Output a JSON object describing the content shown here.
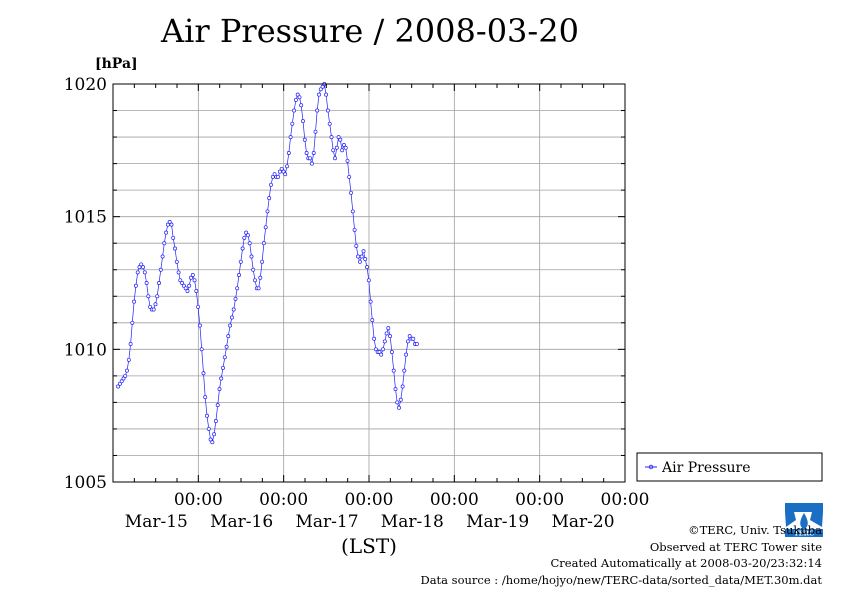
{
  "title": "Air Pressure / 2008-03-20",
  "unit_label": "[hPa]",
  "xlabel": "(LST)",
  "legend": {
    "label": "Air Pressure"
  },
  "logo_text": "TERC",
  "credits": {
    "line1": "©TERC, Univ. Tsukuba",
    "line2": "Observed at TERC Tower site",
    "line3": "Created Automatically at 2008-03-20/23:32:14",
    "line4": "Data source : /home/hojyo/new/TERC-data/sorted_data/MET.30m.dat"
  },
  "colors": {
    "series": "#2020ff",
    "grid": "#a0a0a0",
    "axis": "#000000"
  },
  "chart_data": {
    "type": "line",
    "title": "Air Pressure / 2008-03-20",
    "ylabel": "[hPa]",
    "xlabel": "(LST)",
    "ylim": [
      1005,
      1020
    ],
    "yticks": [
      1005,
      1010,
      1015,
      1020
    ],
    "xlim": [
      -1.0,
      5.0
    ],
    "x_unit": "days from Mar-15 00:00 LST",
    "xticks": [
      {
        "x": 0,
        "time": "00:00",
        "date": "Mar-15"
      },
      {
        "x": 1,
        "time": "00:00",
        "date": "Mar-16"
      },
      {
        "x": 2,
        "time": "00:00",
        "date": "Mar-17"
      },
      {
        "x": 3,
        "time": "00:00",
        "date": "Mar-18"
      },
      {
        "x": 4,
        "time": "00:00",
        "date": "Mar-19"
      },
      {
        "x": 5,
        "time": "00:00",
        "date": "Mar-20"
      }
    ],
    "grid": true,
    "legend_position": "right-bottom",
    "series": [
      {
        "name": "Air Pressure",
        "interval_hours": 0.5,
        "start": "Mar-14 00:00",
        "values": [
          1008.6,
          1008.7,
          1008.8,
          1008.9,
          1009.0,
          1009.2,
          1009.6,
          1010.2,
          1011.0,
          1011.8,
          1012.4,
          1012.9,
          1013.1,
          1013.2,
          1013.1,
          1012.9,
          1012.5,
          1012.0,
          1011.6,
          1011.5,
          1011.5,
          1011.7,
          1012.0,
          1012.5,
          1013.0,
          1013.5,
          1014.0,
          1014.4,
          1014.7,
          1014.8,
          1014.7,
          1014.2,
          1013.8,
          1013.3,
          1012.9,
          1012.6,
          1012.5,
          1012.4,
          1012.3,
          1012.2,
          1012.4,
          1012.7,
          1012.8,
          1012.6,
          1012.2,
          1011.6,
          1010.9,
          1010.0,
          1009.1,
          1008.2,
          1007.5,
          1007.0,
          1006.6,
          1006.5,
          1006.8,
          1007.3,
          1007.9,
          1008.5,
          1008.9,
          1009.3,
          1009.7,
          1010.1,
          1010.5,
          1010.9,
          1011.2,
          1011.5,
          1011.9,
          1012.3,
          1012.8,
          1013.3,
          1013.8,
          1014.2,
          1014.4,
          1014.3,
          1014.0,
          1013.5,
          1013.0,
          1012.6,
          1012.3,
          1012.3,
          1012.7,
          1013.3,
          1014.0,
          1014.6,
          1015.2,
          1015.7,
          1016.2,
          1016.5,
          1016.6,
          1016.5,
          1016.5,
          1016.7,
          1016.8,
          1016.7,
          1016.6,
          1016.9,
          1017.4,
          1018.0,
          1018.5,
          1019.0,
          1019.4,
          1019.6,
          1019.5,
          1019.2,
          1018.6,
          1017.9,
          1017.4,
          1017.2,
          1017.2,
          1017.0,
          1017.4,
          1018.2,
          1019.0,
          1019.6,
          1019.8,
          1019.9,
          1020.0,
          1019.6,
          1019.0,
          1018.5,
          1018.0,
          1017.5,
          1017.2,
          1017.6,
          1018.0,
          1017.9,
          1017.5,
          1017.7,
          1017.6,
          1017.1,
          1016.5,
          1015.9,
          1015.2,
          1014.5,
          1013.9,
          1013.5,
          1013.3,
          1013.5,
          1013.7,
          1013.4,
          1013.1,
          1012.6,
          1011.8,
          1011.1,
          1010.4,
          1010.0,
          1009.9,
          1009.9,
          1009.8,
          1010.0,
          1010.3,
          1010.6,
          1010.8,
          1010.5,
          1009.9,
          1009.2,
          1008.5,
          1008.0,
          1007.8,
          1008.1,
          1008.6,
          1009.2,
          1009.8,
          1010.3,
          1010.5,
          1010.4,
          1010.4,
          1010.2,
          1010.2
        ]
      }
    ]
  }
}
